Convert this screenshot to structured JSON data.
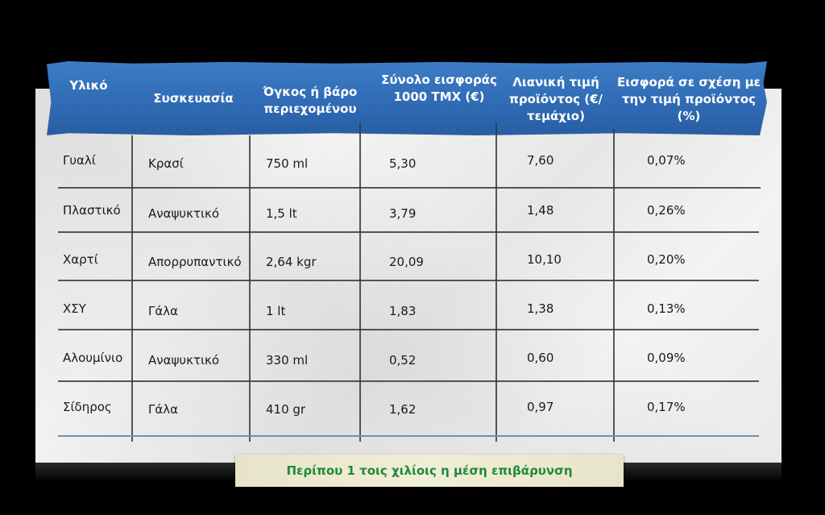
{
  "headers": [
    "Υλικό",
    "Συσκευασία",
    "Όγκος ή βάρο περιεχομένου",
    "Σύνολο εισφοράς 1000 ΤΜΧ (€)",
    "Λιανική τιμή προϊόντος (€/τεμάχιο)",
    "Εισφορά σε σχέση με την τιμή προϊόντος (%)"
  ],
  "rows": [
    [
      "Γυαλί",
      "Κρασί",
      "750 ml",
      "5,30",
      "7,60",
      "0,07%"
    ],
    [
      "Πλαστικό",
      "Αναψυκτικό",
      "1,5 lt",
      "3,79",
      "1,48",
      "0,26%"
    ],
    [
      "Χαρτί",
      "Απορρυπαντικό",
      "2,64 kgr",
      "20,09",
      "10,10",
      "0,20%"
    ],
    [
      "ΧΣΥ",
      "Γάλα",
      "1 lt",
      "1,83",
      "1,38",
      "0,13%"
    ],
    [
      "Αλουμίνιο",
      "Αναψυκτικό",
      "330 ml",
      "0,52",
      "0,60",
      "0,09%"
    ],
    [
      "Σίδηρος",
      "Γάλα",
      "410 gr",
      "1,62",
      "0,97",
      "0,17%"
    ]
  ],
  "footer_note": "Περίπου 1 τοις χιλίοις η μέση επιβάρυνση",
  "colors": {
    "header_blue": "#2f6ab3",
    "footer_text_green": "#1f8a3a",
    "footer_background": "#ece9cf"
  }
}
